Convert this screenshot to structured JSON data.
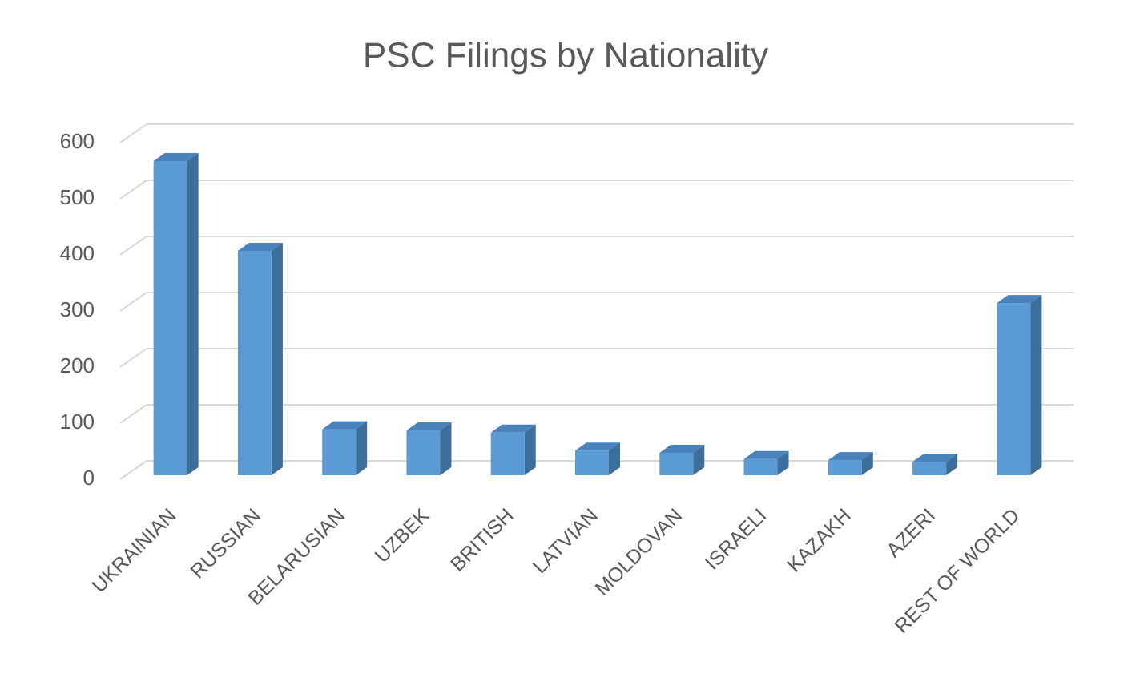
{
  "chart_data": {
    "type": "bar3d",
    "title": "PSC Filings by Nationality",
    "categories": [
      "UKRAINIAN",
      "RUSSIAN",
      "BELARUSIAN",
      "UZBEK",
      "BRITISH",
      "LATVIAN",
      "MOLDOVAN",
      "ISRAELI",
      "KAZAKH",
      "AZERI",
      "REST OF WORLD"
    ],
    "values": [
      560,
      400,
      82,
      80,
      76,
      44,
      40,
      29,
      27,
      24,
      307
    ],
    "color": "#5b9bd5",
    "ylim": [
      0,
      600
    ],
    "yticks": [
      0,
      100,
      200,
      300,
      400,
      500,
      600
    ],
    "grid": true
  }
}
